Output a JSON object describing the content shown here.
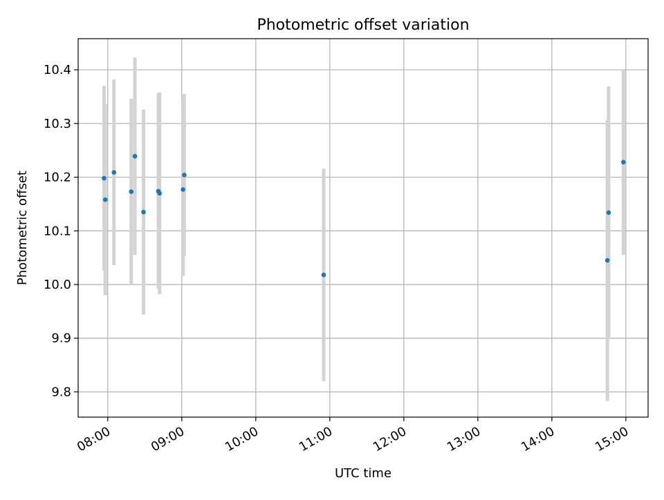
{
  "chart_data": {
    "type": "scatter",
    "title": "Photometric offset variation",
    "xlabel": "UTC time",
    "ylabel": "Photometric offset",
    "x_time_range": [
      "07:36",
      "15:18"
    ],
    "ylim": [
      9.753,
      10.458
    ],
    "x_ticks": [
      "08:00",
      "09:00",
      "10:00",
      "11:00",
      "12:00",
      "13:00",
      "14:00",
      "15:00"
    ],
    "y_ticks": [
      "9.8",
      "9.9",
      "10.0",
      "10.1",
      "10.2",
      "10.3",
      "10.4"
    ],
    "grid": true,
    "legend": "none",
    "colors": {
      "point": "#1f77b4",
      "errorbar": "#d3d3d3",
      "grid": "#b0b0b0",
      "axes": "#000000"
    },
    "series": [
      {
        "points": [
          {
            "t": "07:57",
            "y": 10.198,
            "err": 0.172
          },
          {
            "t": "07:58",
            "y": 10.158,
            "err": 0.178
          },
          {
            "t": "08:05",
            "y": 10.209,
            "err": 0.173
          },
          {
            "t": "08:19",
            "y": 10.173,
            "err": 0.173
          },
          {
            "t": "08:22",
            "y": 10.239,
            "err": 0.184
          },
          {
            "t": "08:29",
            "y": 10.135,
            "err": 0.191
          },
          {
            "t": "08:41",
            "y": 10.174,
            "err": 0.182
          },
          {
            "t": "08:42",
            "y": 10.17,
            "err": 0.188
          },
          {
            "t": "09:01",
            "y": 10.177,
            "err": 0.161
          },
          {
            "t": "09:02",
            "y": 10.204,
            "err": 0.151
          },
          {
            "t": "10:55",
            "y": 10.018,
            "err": 0.198
          },
          {
            "t": "14:45",
            "y": 10.045,
            "err": 0.262
          },
          {
            "t": "14:46",
            "y": 10.134,
            "err": 0.235
          },
          {
            "t": "14:58",
            "y": 10.228,
            "err": 0.173
          }
        ]
      }
    ]
  }
}
